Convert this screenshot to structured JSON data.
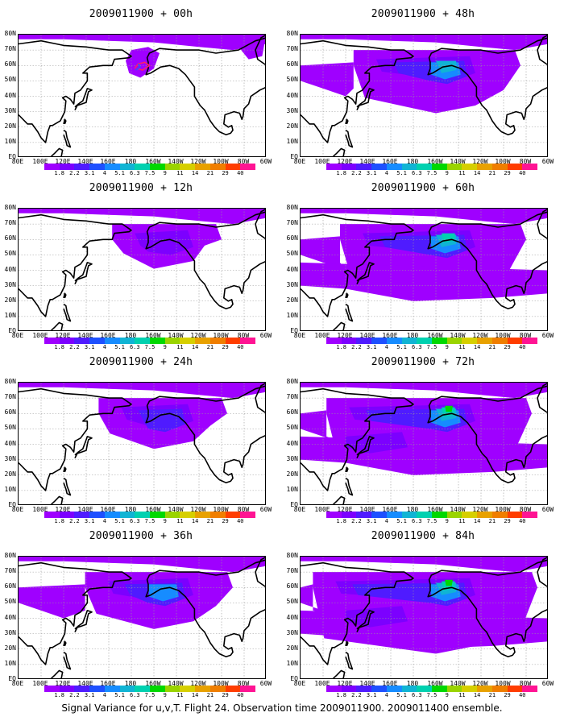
{
  "footer_text": "Signal Variance for u,v,T. Flight 24. Observation time 2009011900. 2009011400 ensemble.",
  "lat_labels": [
    "80N",
    "70N",
    "60N",
    "50N",
    "40N",
    "30N",
    "20N",
    "10N",
    "EQ"
  ],
  "lon_labels": [
    "80E",
    "100E",
    "120E",
    "140E",
    "160E",
    "180",
    "160W",
    "140W",
    "120W",
    "100W",
    "80W",
    "60W"
  ],
  "colorbar": {
    "levels": [
      "1.8",
      "2.2",
      "3.1",
      "4",
      "5.1",
      "6.3",
      "7.5",
      "9",
      "11",
      "14",
      "21",
      "29",
      "40"
    ],
    "colors": [
      "#9f00ff",
      "#7c00ff",
      "#4f1bff",
      "#1e50ff",
      "#168cff",
      "#10b4d4",
      "#00d1b0",
      "#00d800",
      "#9ad400",
      "#d6cf00",
      "#e8a100",
      "#f07e00",
      "#ff3d00",
      "#ff1493"
    ]
  },
  "panels": [
    {
      "title": "2009011900 + 00h",
      "level": 0
    },
    {
      "title": "2009011900 + 48h",
      "level": 4
    },
    {
      "title": "2009011900 + 12h",
      "level": 1
    },
    {
      "title": "2009011900 + 60h",
      "level": 5
    },
    {
      "title": "2009011900 + 24h",
      "level": 2
    },
    {
      "title": "2009011900 + 72h",
      "level": 6
    },
    {
      "title": "2009011900 + 36h",
      "level": 3
    },
    {
      "title": "2009011900 + 84h",
      "level": 7
    }
  ]
}
